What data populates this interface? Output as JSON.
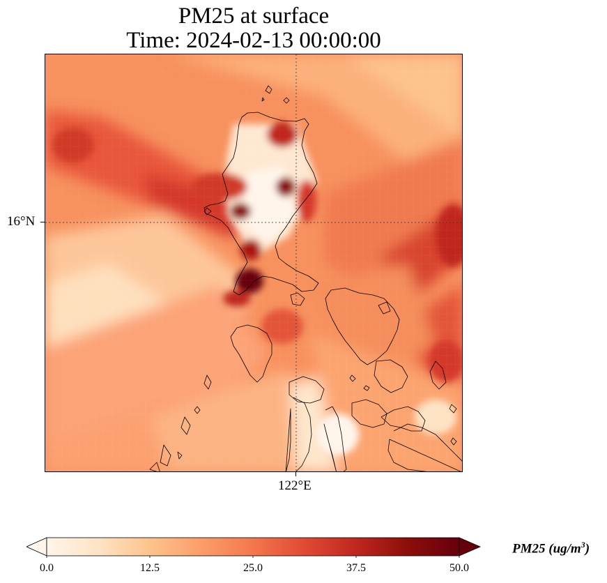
{
  "title": {
    "line1": "PM25 at surface",
    "line2": "Time: 2024-02-13 00:00:00"
  },
  "map": {
    "gridlines": {
      "latitude_label": "16°N",
      "longitude_label": "122°E"
    },
    "region": "Luzon, Philippines",
    "field": "PM25",
    "colormap": [
      "#fff5eb",
      "#fee3c4",
      "#fdc38d",
      "#fc9d69",
      "#f4774d",
      "#e04a34",
      "#c0271f",
      "#8c0e0a",
      "#67000d"
    ],
    "land_outline_color": "#000000"
  },
  "colorbar": {
    "min": 0.0,
    "max": 50.0,
    "extend": "both",
    "ticks": [
      "0.0",
      "12.5",
      "25.0",
      "37.5",
      "50.0"
    ],
    "label_prefix": "PM25 (ug/m",
    "label_sup": "3",
    "label_suffix": ")"
  }
}
